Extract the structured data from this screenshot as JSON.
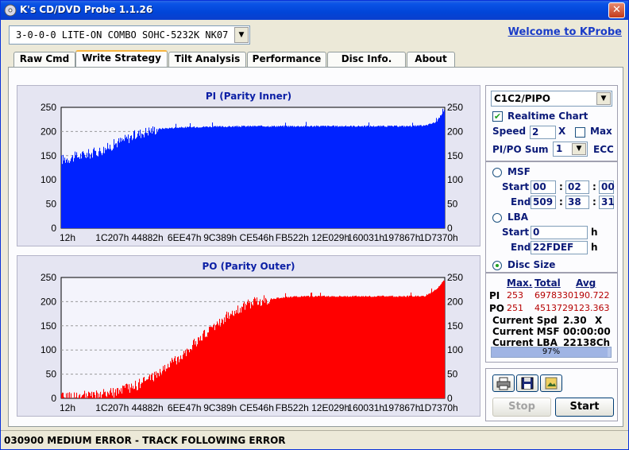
{
  "window": {
    "title": "K's CD/DVD Probe 1.1.26",
    "close_label": "✕"
  },
  "device": {
    "selected": "3-0-0-0 LITE-ON COMBO SOHC-5232K NK07"
  },
  "header": {
    "welcome": "Welcome to KProbe"
  },
  "tabs": [
    {
      "label": "Raw Cmd"
    },
    {
      "label": "Write Strategy"
    },
    {
      "label": "Tilt Analysis"
    },
    {
      "label": "Performance"
    },
    {
      "label": "Disc Info."
    },
    {
      "label": "About"
    }
  ],
  "chart_data": [
    {
      "type": "bar",
      "title": "PI (Parity Inner)",
      "color": "#0022ff",
      "x_tick_labels": [
        "12h",
        "1C207h",
        "44882h",
        "6EE47h",
        "9C389h",
        "CE546h",
        "FB522h",
        "12E029h",
        "160031h",
        "197867h",
        "1D7370h"
      ],
      "ylim": [
        0,
        250
      ],
      "y_ticks": [
        0,
        50,
        100,
        150,
        200,
        250
      ],
      "profile": [
        [
          0,
          142
        ],
        [
          0.02,
          145
        ],
        [
          0.05,
          150
        ],
        [
          0.08,
          155
        ],
        [
          0.1,
          160
        ],
        [
          0.12,
          166
        ],
        [
          0.14,
          175
        ],
        [
          0.17,
          185
        ],
        [
          0.2,
          195
        ],
        [
          0.23,
          202
        ],
        [
          0.26,
          206
        ],
        [
          0.3,
          208
        ],
        [
          0.34,
          209
        ],
        [
          0.38,
          210
        ],
        [
          0.42,
          210
        ],
        [
          0.5,
          211
        ],
        [
          0.6,
          211
        ],
        [
          0.7,
          211
        ],
        [
          0.8,
          211
        ],
        [
          0.9,
          211
        ],
        [
          0.95,
          212
        ],
        [
          0.98,
          220
        ],
        [
          1.0,
          245
        ]
      ],
      "max": 253
    },
    {
      "type": "bar",
      "title": "PO (Parity Outer)",
      "color": "#ff0000",
      "x_tick_labels": [
        "12h",
        "1C207h",
        "44882h",
        "6EE47h",
        "9C389h",
        "CE546h",
        "FB522h",
        "12E029h",
        "160031h",
        "197867h",
        "1D7370h"
      ],
      "ylim": [
        0,
        250
      ],
      "y_ticks": [
        0,
        50,
        100,
        150,
        200,
        250
      ],
      "profile": [
        [
          0,
          2
        ],
        [
          0.05,
          4
        ],
        [
          0.1,
          7
        ],
        [
          0.15,
          14
        ],
        [
          0.2,
          28
        ],
        [
          0.25,
          50
        ],
        [
          0.3,
          80
        ],
        [
          0.35,
          115
        ],
        [
          0.4,
          150
        ],
        [
          0.45,
          180
        ],
        [
          0.5,
          198
        ],
        [
          0.55,
          206
        ],
        [
          0.6,
          210
        ],
        [
          0.65,
          211
        ],
        [
          0.7,
          211
        ],
        [
          0.8,
          211
        ],
        [
          0.9,
          211
        ],
        [
          0.95,
          212
        ],
        [
          0.98,
          225
        ],
        [
          1.0,
          245
        ]
      ],
      "max": 251
    }
  ],
  "controls": {
    "mode": "C1C2/PIPO",
    "realtime_chart": "Realtime Chart",
    "realtime_checked": true,
    "speed_label": "Speed",
    "speed_value": "2",
    "speed_unit": "X",
    "max_label": "Max",
    "pipo_sum_label": "PI/PO Sum",
    "pipo_sum_value": "1",
    "ecc_label": "ECC",
    "msf_label": "MSF",
    "msf_start_label": "Start",
    "msf_start": [
      "00",
      "02",
      "00"
    ],
    "msf_end_label": "End",
    "msf_end": [
      "509",
      "38",
      "31"
    ],
    "lba_label": "LBA",
    "lba_start_label": "Start",
    "lba_start": "0",
    "lba_end_label": "End",
    "lba_end": "22FDEF",
    "h_unit": "h",
    "disc_size_label": "Disc Size",
    "selected_range": "disc_size"
  },
  "stats": {
    "headers": {
      "max": "Max.",
      "total": "Total",
      "avg": "Avg"
    },
    "pi": {
      "label": "PI",
      "max": "253",
      "total": "6978330",
      "avg": "190.722"
    },
    "po": {
      "label": "PO",
      "max": "251",
      "total": "4513729",
      "avg": "123.363"
    },
    "current_spd_label": "Current Spd",
    "current_spd": "2.30",
    "current_spd_unit": "X",
    "current_msf_label": "Current MSF",
    "current_msf": "00:00:00",
    "current_lba_label": "Current LBA",
    "current_lba": "22138Ch",
    "progress_pct": 97,
    "progress_text": "97%"
  },
  "actions": {
    "stop": "Stop",
    "start": "Start"
  },
  "status": {
    "message": "030900 MEDIUM ERROR - TRACK FOLLOWING ERROR"
  }
}
